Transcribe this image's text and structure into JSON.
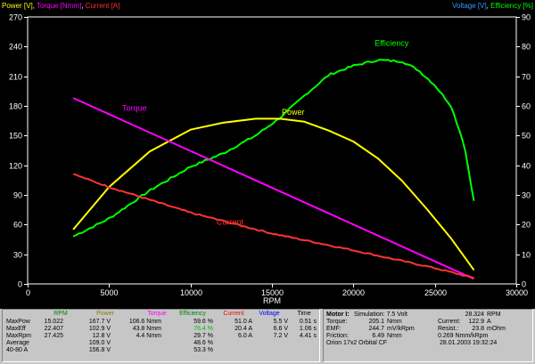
{
  "header": {
    "left": [
      {
        "text": "Power [V]",
        "color": "#ffff00"
      },
      {
        "text": ", ",
        "color": "#ffffff"
      },
      {
        "text": "Torque [Nmm]",
        "color": "#ff00ff"
      },
      {
        "text": ", ",
        "color": "#ffffff"
      },
      {
        "text": "Current [A]",
        "color": "#ff3030"
      }
    ],
    "right": [
      {
        "text": "Voltage [V]",
        "color": "#3399ff"
      },
      {
        "text": ", ",
        "color": "#ffffff"
      },
      {
        "text": "Efficiency [%]",
        "color": "#00ff00"
      }
    ]
  },
  "chart_data": {
    "type": "line",
    "xlabel": "RPM",
    "xlim": [
      0,
      30000
    ],
    "x_ticks": [
      "0",
      "5000",
      "10000",
      "15000",
      "20000",
      "25000",
      "30000"
    ],
    "ylim_left": [
      0,
      270
    ],
    "y_ticks_left": [
      "0",
      "30",
      "60",
      "90",
      "120",
      "150",
      "180",
      "210",
      "240",
      "270"
    ],
    "ylim_right": [
      0,
      90
    ],
    "y_ticks_right": [
      "0",
      "10",
      "20",
      "30",
      "40",
      "50",
      "60",
      "70",
      "80",
      "90"
    ],
    "grid": true,
    "series": [
      {
        "name": "Efficiency",
        "axis": "right",
        "color": "#00ff00",
        "noisy": true,
        "points": [
          [
            2800,
            16
          ],
          [
            5000,
            22
          ],
          [
            7500,
            31.5
          ],
          [
            10000,
            39.5
          ],
          [
            12000,
            44
          ],
          [
            14000,
            50
          ],
          [
            15500,
            56
          ],
          [
            17000,
            63.5
          ],
          [
            18500,
            70.5
          ],
          [
            20000,
            73.5
          ],
          [
            21500,
            75.5
          ],
          [
            23000,
            75
          ],
          [
            24000,
            72
          ],
          [
            25000,
            67
          ],
          [
            26000,
            60
          ],
          [
            26800,
            47
          ],
          [
            27400,
            28
          ]
        ]
      },
      {
        "name": "Power",
        "axis": "left",
        "color": "#ffff00",
        "noisy": false,
        "points": [
          [
            2800,
            55
          ],
          [
            5000,
            98
          ],
          [
            7500,
            134
          ],
          [
            10000,
            156
          ],
          [
            12000,
            163
          ],
          [
            14000,
            167
          ],
          [
            15500,
            167
          ],
          [
            17000,
            164
          ],
          [
            18500,
            155
          ],
          [
            20000,
            144
          ],
          [
            21500,
            127
          ],
          [
            23000,
            104
          ],
          [
            24500,
            76
          ],
          [
            26000,
            46
          ],
          [
            27400,
            14
          ]
        ]
      },
      {
        "name": "Torque",
        "axis": "left",
        "color": "#ff00ff",
        "noisy": false,
        "points": [
          [
            2800,
            188
          ],
          [
            27400,
            5
          ]
        ]
      },
      {
        "name": "Current",
        "axis": "left",
        "color": "#ff3333",
        "noisy": true,
        "points": [
          [
            2800,
            111
          ],
          [
            5000,
            98
          ],
          [
            10000,
            72
          ],
          [
            15000,
            51
          ],
          [
            20000,
            34
          ],
          [
            25000,
            16
          ],
          [
            27400,
            6
          ]
        ]
      }
    ],
    "labels": [
      {
        "text": "Efficiency",
        "color": "#00ff00",
        "x": 21300,
        "axis": "right",
        "y": 80.3
      },
      {
        "text": "Power",
        "color": "#ffff00",
        "x": 15600,
        "axis": "left",
        "y": 171
      },
      {
        "text": "Torque",
        "color": "#ff00ff",
        "x": 5800,
        "axis": "left",
        "y": 175
      },
      {
        "text": "Current",
        "color": "#ff3030",
        "x": 11600,
        "axis": "left",
        "y": 60
      }
    ]
  },
  "table": {
    "headers": [
      {
        "text": "RPM",
        "color": "#008000"
      },
      {
        "text": "Power",
        "color": "#808000"
      },
      {
        "text": "Torque",
        "color": "#ff00ff"
      },
      {
        "text": "Efficiency",
        "color": "#008000"
      },
      {
        "text": "Current",
        "color": "#ff0000"
      },
      {
        "text": "Voltage",
        "color": "#0000ff"
      },
      {
        "text": "Time",
        "color": "#000000"
      }
    ],
    "rows": [
      {
        "label": "MaxPow",
        "rpm": "15.022",
        "power": "167.7 V",
        "torque": "106.6 Nmm",
        "eff": "59.6 %",
        "current": "51.0 A",
        "voltage": "5.5 V",
        "time": "0.51 s"
      },
      {
        "label": "MaxEff",
        "rpm": "22.407",
        "power": "102.9 V",
        "torque": "43.8 Nmm",
        "eff": "76.4 %",
        "current": "20.4 A",
        "voltage": "6.6 V",
        "time": "1.06 s"
      },
      {
        "label": "MaxRpm",
        "rpm": "27.425",
        "power": "12.8 V",
        "torque": "4.4 Nmm",
        "eff": "29.7 %",
        "current": "6.0 A",
        "voltage": "7.2 V",
        "time": "4.41 s"
      },
      {
        "label": "Average",
        "rpm": "",
        "power": "109.0 V",
        "torque": "",
        "eff": "48.6 %",
        "current": "",
        "voltage": "",
        "time": ""
      },
      {
        "label": "40-80 A",
        "rpm": "",
        "power": "156.8 V",
        "torque": "",
        "eff": "53.3 %",
        "current": "",
        "voltage": "",
        "time": ""
      }
    ],
    "highlight_eff_color": "#00c000"
  },
  "info": {
    "line1_label": "Motor I:",
    "line1_text": "Simulation: 7.5 Volt",
    "line1_value": "28.324",
    "line1_unit": "RPM",
    "rows": [
      {
        "l_label": "Torque:",
        "l_value": "205.1",
        "l_unit": "Nmm",
        "r_label": "Current:",
        "r_value": "122.9",
        "r_unit": "A"
      },
      {
        "l_label": "EMF:",
        "l_value": "244.7",
        "l_unit": "mV/kRpm",
        "r_label": "Resist.:",
        "r_value": "23.8",
        "r_unit": "mOhm"
      },
      {
        "l_label": "Friction:",
        "l_value": "6.49",
        "l_unit": "Nmm",
        "r_label": "",
        "r_value": "0.269 Nmm/kRpm",
        "r_unit": ""
      }
    ],
    "footer_left": "Orion 17x2 Orbital CF",
    "footer_right": "28.01.2003 19:32:24"
  }
}
